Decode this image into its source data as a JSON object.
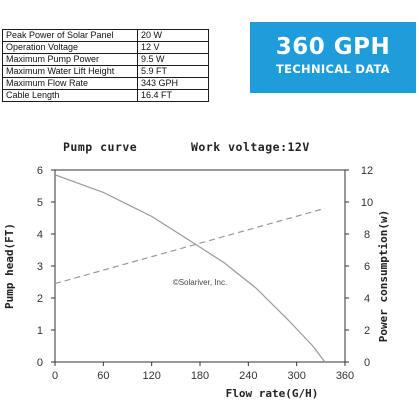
{
  "spec_table": [
    {
      "label": "Peak Power of Solar Panel",
      "value": "20 W"
    },
    {
      "label": "Operation Voltage",
      "value": "12 V"
    },
    {
      "label": "Maximum Pump Power",
      "value": "9.5 W"
    },
    {
      "label": "Maximum Water Lift Height",
      "value": "5.9 FT"
    },
    {
      "label": "Maximum Flow Rate",
      "value": "343 GPH"
    },
    {
      "label": "Cable Length",
      "value": "16.4 FT"
    }
  ],
  "banner": {
    "title": "360 GPH",
    "subtitle": "TECHNICAL DATA",
    "color": "#1f9ddb"
  },
  "chart_titles": {
    "left": "Pump curve",
    "right": "Work voltage:12V"
  },
  "watermark": "©Solariver, Inc.",
  "chart_data": {
    "type": "line",
    "xlabel": "Flow rate(G/H)",
    "ylabel": "Pump head(FT)",
    "y2label": "Power consumption(w)",
    "xlim": [
      0,
      360
    ],
    "ylim": [
      0,
      6
    ],
    "y2lim": [
      0,
      12
    ],
    "xticks": [
      "0",
      "60",
      "120",
      "180",
      "240",
      "300",
      "360"
    ],
    "yticks": [
      "0",
      "1",
      "2",
      "3",
      "4",
      "5",
      "6"
    ],
    "y2ticks": [
      "0",
      "2",
      "4",
      "6",
      "8",
      "10",
      "12"
    ],
    "grid": false,
    "series": [
      {
        "axis": "left",
        "style": "solid",
        "color": "#999999",
        "x": [
          0,
          60,
          120,
          170,
          210,
          250,
          290,
          320,
          335
        ],
        "y": [
          5.85,
          5.3,
          4.55,
          3.75,
          3.1,
          2.3,
          1.3,
          0.5,
          0.0
        ]
      },
      {
        "axis": "right",
        "style": "dashed",
        "color": "#999999",
        "x": [
          0,
          335
        ],
        "y": [
          4.9,
          9.6
        ]
      }
    ]
  }
}
